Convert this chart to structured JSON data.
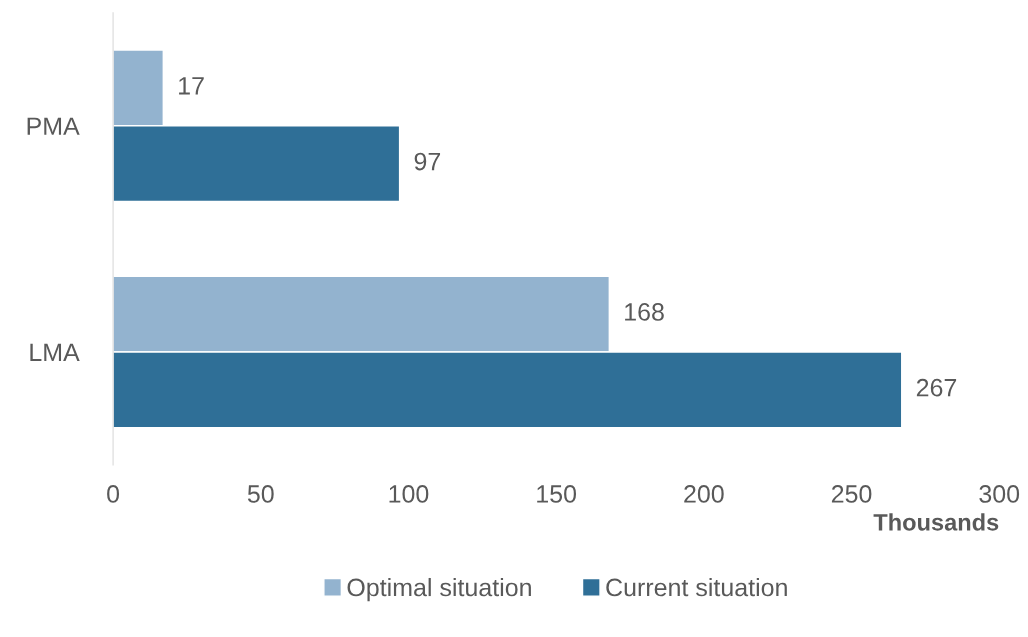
{
  "chart_data": {
    "type": "bar",
    "orientation": "horizontal",
    "categories": [
      "PMA",
      "LMA"
    ],
    "series": [
      {
        "name": "Optimal situation",
        "color": "#93b3cf",
        "values": [
          17,
          168
        ]
      },
      {
        "name": "Current situation",
        "color": "#2f6f97",
        "values": [
          97,
          267
        ]
      }
    ],
    "xlabel": "Thousands",
    "xlim": [
      0,
      300
    ],
    "xticks": [
      0,
      50,
      100,
      150,
      200,
      250,
      300
    ],
    "data_labels": true,
    "grid": false,
    "legend": "bottom"
  }
}
